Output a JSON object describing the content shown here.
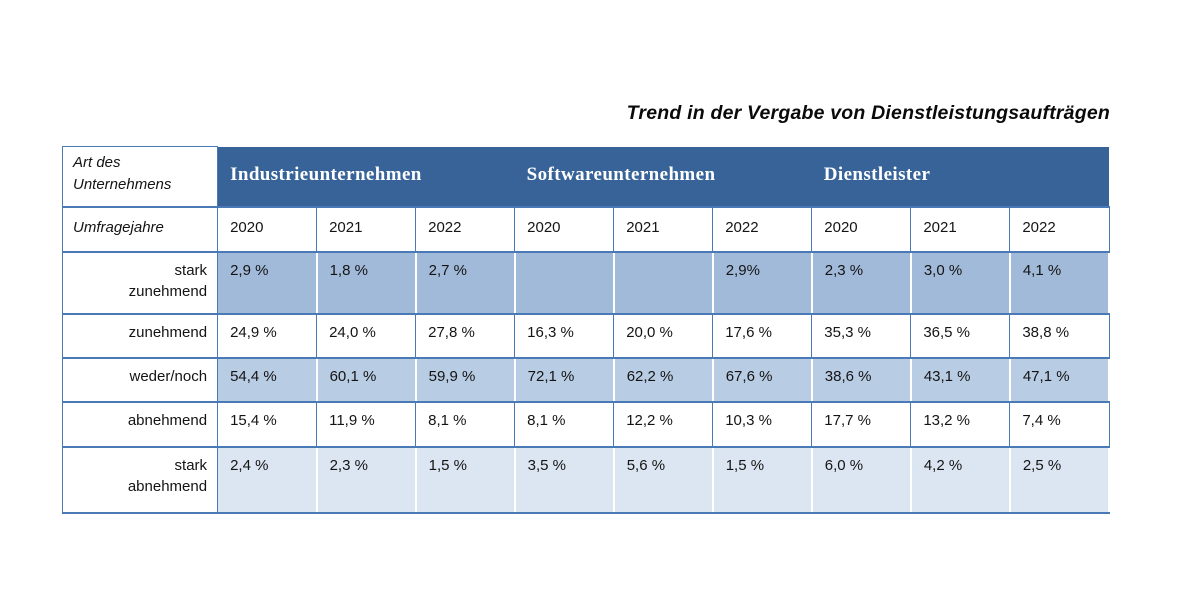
{
  "title": "Trend in der Vergabe von Dienstleistungsaufträgen",
  "colors": {
    "header_bg": "#376399",
    "border": "#4a7ab5",
    "shade_strong": "#a1bad9",
    "shade_medium": "#b8cce4",
    "shade_light": "#dce6f2",
    "header_text": "#ffffff"
  },
  "table": {
    "corner_label": "Art des\nUnternehmens",
    "year_label": "Umfragejahre",
    "groups": [
      {
        "label": "Industrieunternehmen",
        "years": [
          "2020",
          "2021",
          "2022"
        ]
      },
      {
        "label": "Softwareunternehmen",
        "years": [
          "2020",
          "2021",
          "2022"
        ]
      },
      {
        "label": "Dienstleister",
        "years": [
          "2020",
          "2021",
          "2022"
        ]
      }
    ],
    "rows": [
      {
        "label": "stark\nzunehmend",
        "shade": "strong",
        "values": [
          "2,9 %",
          "1,8 %",
          "2,7 %",
          "",
          "",
          "2,9%",
          "2,3 %",
          "3,0 %",
          "4,1 %"
        ]
      },
      {
        "label": "zunehmend",
        "shade": "none",
        "values": [
          "24,9 %",
          "24,0 %",
          "27,8 %",
          "16,3 %",
          "20,0 %",
          "17,6 %",
          "35,3 %",
          "36,5 %",
          "38,8 %"
        ]
      },
      {
        "label": "weder/noch",
        "shade": "medium",
        "values": [
          "54,4 %",
          "60,1 %",
          "59,9 %",
          "72,1 %",
          "62,2 %",
          "67,6 %",
          "38,6 %",
          "43,1 %",
          "47,1 %"
        ]
      },
      {
        "label": "abnehmend",
        "shade": "none",
        "values": [
          "15,4 %",
          "11,9 %",
          "8,1 %",
          "8,1 %",
          "12,2 %",
          "10,3 %",
          "17,7 %",
          "13,2 %",
          "7,4 %"
        ]
      },
      {
        "label": "stark\nabnehmend",
        "shade": "light",
        "values": [
          "2,4 %",
          "2,3 %",
          "1,5 %",
          "3,5 %",
          "5,6 %",
          "1,5 %",
          "6,0 %",
          "4,2 %",
          "2,5 %"
        ]
      }
    ]
  },
  "chart_data": {
    "type": "table",
    "title": "Trend in der Vergabe von Dienstleistungsaufträgen",
    "row_header_label": "Art des Unternehmens",
    "column_header_label": "Umfragejahre",
    "column_groups": [
      "Industrieunternehmen",
      "Softwareunternehmen",
      "Dienstleister"
    ],
    "years": [
      2020,
      2021,
      2022
    ],
    "categories": [
      "stark zunehmend",
      "zunehmend",
      "weder/noch",
      "abnehmend",
      "stark abnehmend"
    ],
    "values_percent": {
      "Industrieunternehmen": {
        "2020": [
          2.9,
          24.9,
          54.4,
          15.4,
          2.4
        ],
        "2021": [
          1.8,
          24.0,
          60.1,
          11.9,
          2.3
        ],
        "2022": [
          2.7,
          27.8,
          59.9,
          8.1,
          1.5
        ]
      },
      "Softwareunternehmen": {
        "2020": [
          null,
          16.3,
          72.1,
          8.1,
          3.5
        ],
        "2021": [
          null,
          20.0,
          62.2,
          12.2,
          5.6
        ],
        "2022": [
          2.9,
          17.6,
          67.6,
          10.3,
          1.5
        ]
      },
      "Dienstleister": {
        "2020": [
          2.3,
          35.3,
          38.6,
          17.7,
          6.0
        ],
        "2021": [
          3.0,
          36.5,
          43.1,
          13.2,
          4.2
        ],
        "2022": [
          4.1,
          38.8,
          47.1,
          7.4,
          2.5
        ]
      }
    },
    "layout": {
      "grid": true,
      "banded_rows": true,
      "legend": "none"
    }
  }
}
